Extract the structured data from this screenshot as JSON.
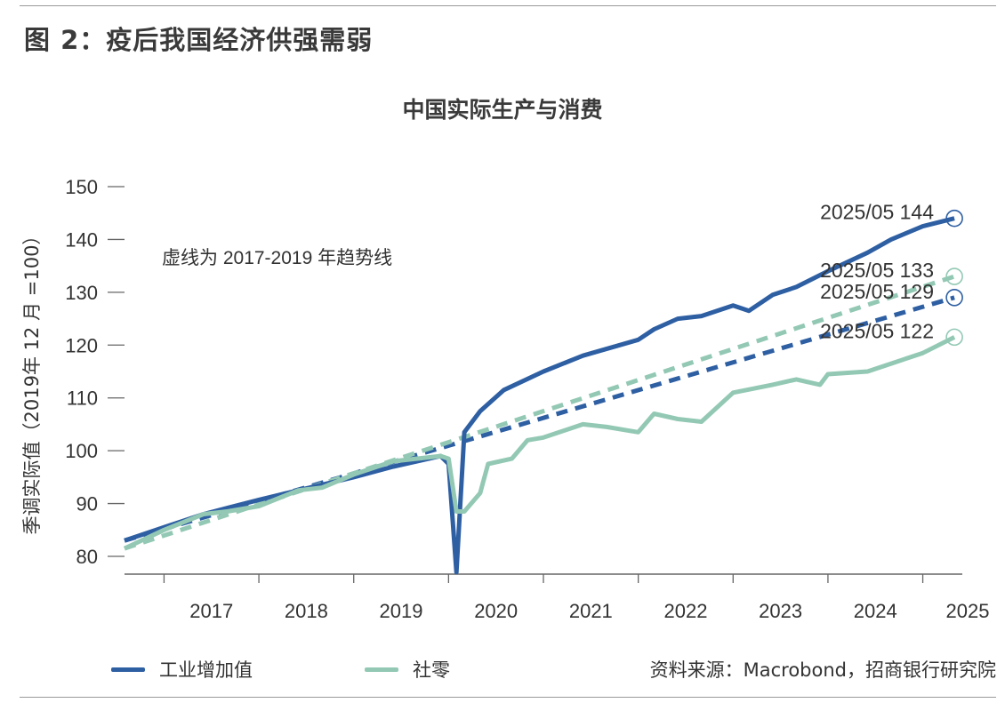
{
  "figure_title": "图 2：疫后我国经济供强需弱",
  "source": "资料来源：Macrobond，招商银行研究院",
  "colors": {
    "industry": "#2e5fa3",
    "retail": "#93c9b4",
    "axis": "#666666"
  },
  "chart_data": {
    "type": "line",
    "title": "中国实际生产与消费",
    "ylabel": "季调实际值（2019年 12 月 =100）",
    "xlabel": "",
    "ylim": [
      77,
      150
    ],
    "yticks": [
      80,
      90,
      100,
      110,
      120,
      130,
      140,
      150
    ],
    "x_range": [
      "2016-08",
      "2025-06"
    ],
    "x_ticks": [
      "2017",
      "2018",
      "2019",
      "2020",
      "2021",
      "2022",
      "2023",
      "2024",
      "2025"
    ],
    "grid": false,
    "legend_position": "bottom",
    "annotation": "虚线为 2017-2019 年趋势线",
    "series": [
      {
        "name": "工业增加值",
        "key": "industry",
        "style": "solid",
        "points": [
          [
            "2016-08",
            83.0
          ],
          [
            "2017-01",
            85.5
          ],
          [
            "2017-06",
            88.0
          ],
          [
            "2018-01",
            90.7
          ],
          [
            "2018-06",
            92.5
          ],
          [
            "2019-01",
            95.0
          ],
          [
            "2019-06",
            97.0
          ],
          [
            "2019-12",
            99.0
          ],
          [
            "2020-01",
            97.5
          ],
          [
            "2020-02",
            77.0
          ],
          [
            "2020-03",
            103.5
          ],
          [
            "2020-05",
            107.5
          ],
          [
            "2020-08",
            111.5
          ],
          [
            "2021-01",
            115.0
          ],
          [
            "2021-06",
            118.0
          ],
          [
            "2022-01",
            121.0
          ],
          [
            "2022-03",
            123.0
          ],
          [
            "2022-06",
            125.0
          ],
          [
            "2022-09",
            125.5
          ],
          [
            "2023-01",
            127.5
          ],
          [
            "2023-03",
            126.5
          ],
          [
            "2023-06",
            129.5
          ],
          [
            "2023-09",
            131.0
          ],
          [
            "2024-01",
            134.0
          ],
          [
            "2024-06",
            137.5
          ],
          [
            "2024-09",
            140.0
          ],
          [
            "2025-01",
            142.5
          ],
          [
            "2025-05",
            144.0
          ]
        ]
      },
      {
        "name": "社零",
        "key": "retail",
        "style": "solid",
        "points": [
          [
            "2016-08",
            81.5
          ],
          [
            "2017-01",
            85.0
          ],
          [
            "2017-06",
            88.0
          ],
          [
            "2017-09",
            88.5
          ],
          [
            "2018-01",
            89.5
          ],
          [
            "2018-06",
            92.5
          ],
          [
            "2018-09",
            93.0
          ],
          [
            "2019-01",
            95.5
          ],
          [
            "2019-06",
            98.0
          ],
          [
            "2019-12",
            99.0
          ],
          [
            "2020-01",
            98.5
          ],
          [
            "2020-02",
            88.5
          ],
          [
            "2020-03",
            88.5
          ],
          [
            "2020-05",
            92.0
          ],
          [
            "2020-06",
            97.5
          ],
          [
            "2020-09",
            98.5
          ],
          [
            "2020-11",
            102.0
          ],
          [
            "2021-01",
            102.5
          ],
          [
            "2021-06",
            105.0
          ],
          [
            "2021-09",
            104.5
          ],
          [
            "2022-01",
            103.5
          ],
          [
            "2022-03",
            107.0
          ],
          [
            "2022-06",
            106.0
          ],
          [
            "2022-09",
            105.5
          ],
          [
            "2023-01",
            111.0
          ],
          [
            "2023-06",
            112.5
          ],
          [
            "2023-09",
            113.5
          ],
          [
            "2023-12",
            112.5
          ],
          [
            "2024-01",
            114.5
          ],
          [
            "2024-06",
            115.0
          ],
          [
            "2024-09",
            116.5
          ],
          [
            "2025-01",
            118.5
          ],
          [
            "2025-05",
            121.5
          ]
        ]
      },
      {
        "key": "industry",
        "style": "dashed",
        "trend": true,
        "points": [
          [
            "2016-08",
            83.0
          ],
          [
            "2025-05",
            129.0
          ]
        ]
      },
      {
        "key": "retail",
        "style": "dashed",
        "trend": true,
        "points": [
          [
            "2016-08",
            81.5
          ],
          [
            "2025-05",
            133.0
          ]
        ]
      }
    ],
    "end_labels": [
      {
        "text": "2025/05  144",
        "x": "2025-05",
        "y": 144,
        "key": "industry"
      },
      {
        "text": "2025/05  133",
        "x": "2025-05",
        "y": 133,
        "key": "retail"
      },
      {
        "text": "2025/05  129",
        "x": "2025-05",
        "y": 129,
        "key": "industry"
      },
      {
        "text": "2025/05  122",
        "x": "2025-05",
        "y": 121.5,
        "key": "retail"
      }
    ]
  }
}
